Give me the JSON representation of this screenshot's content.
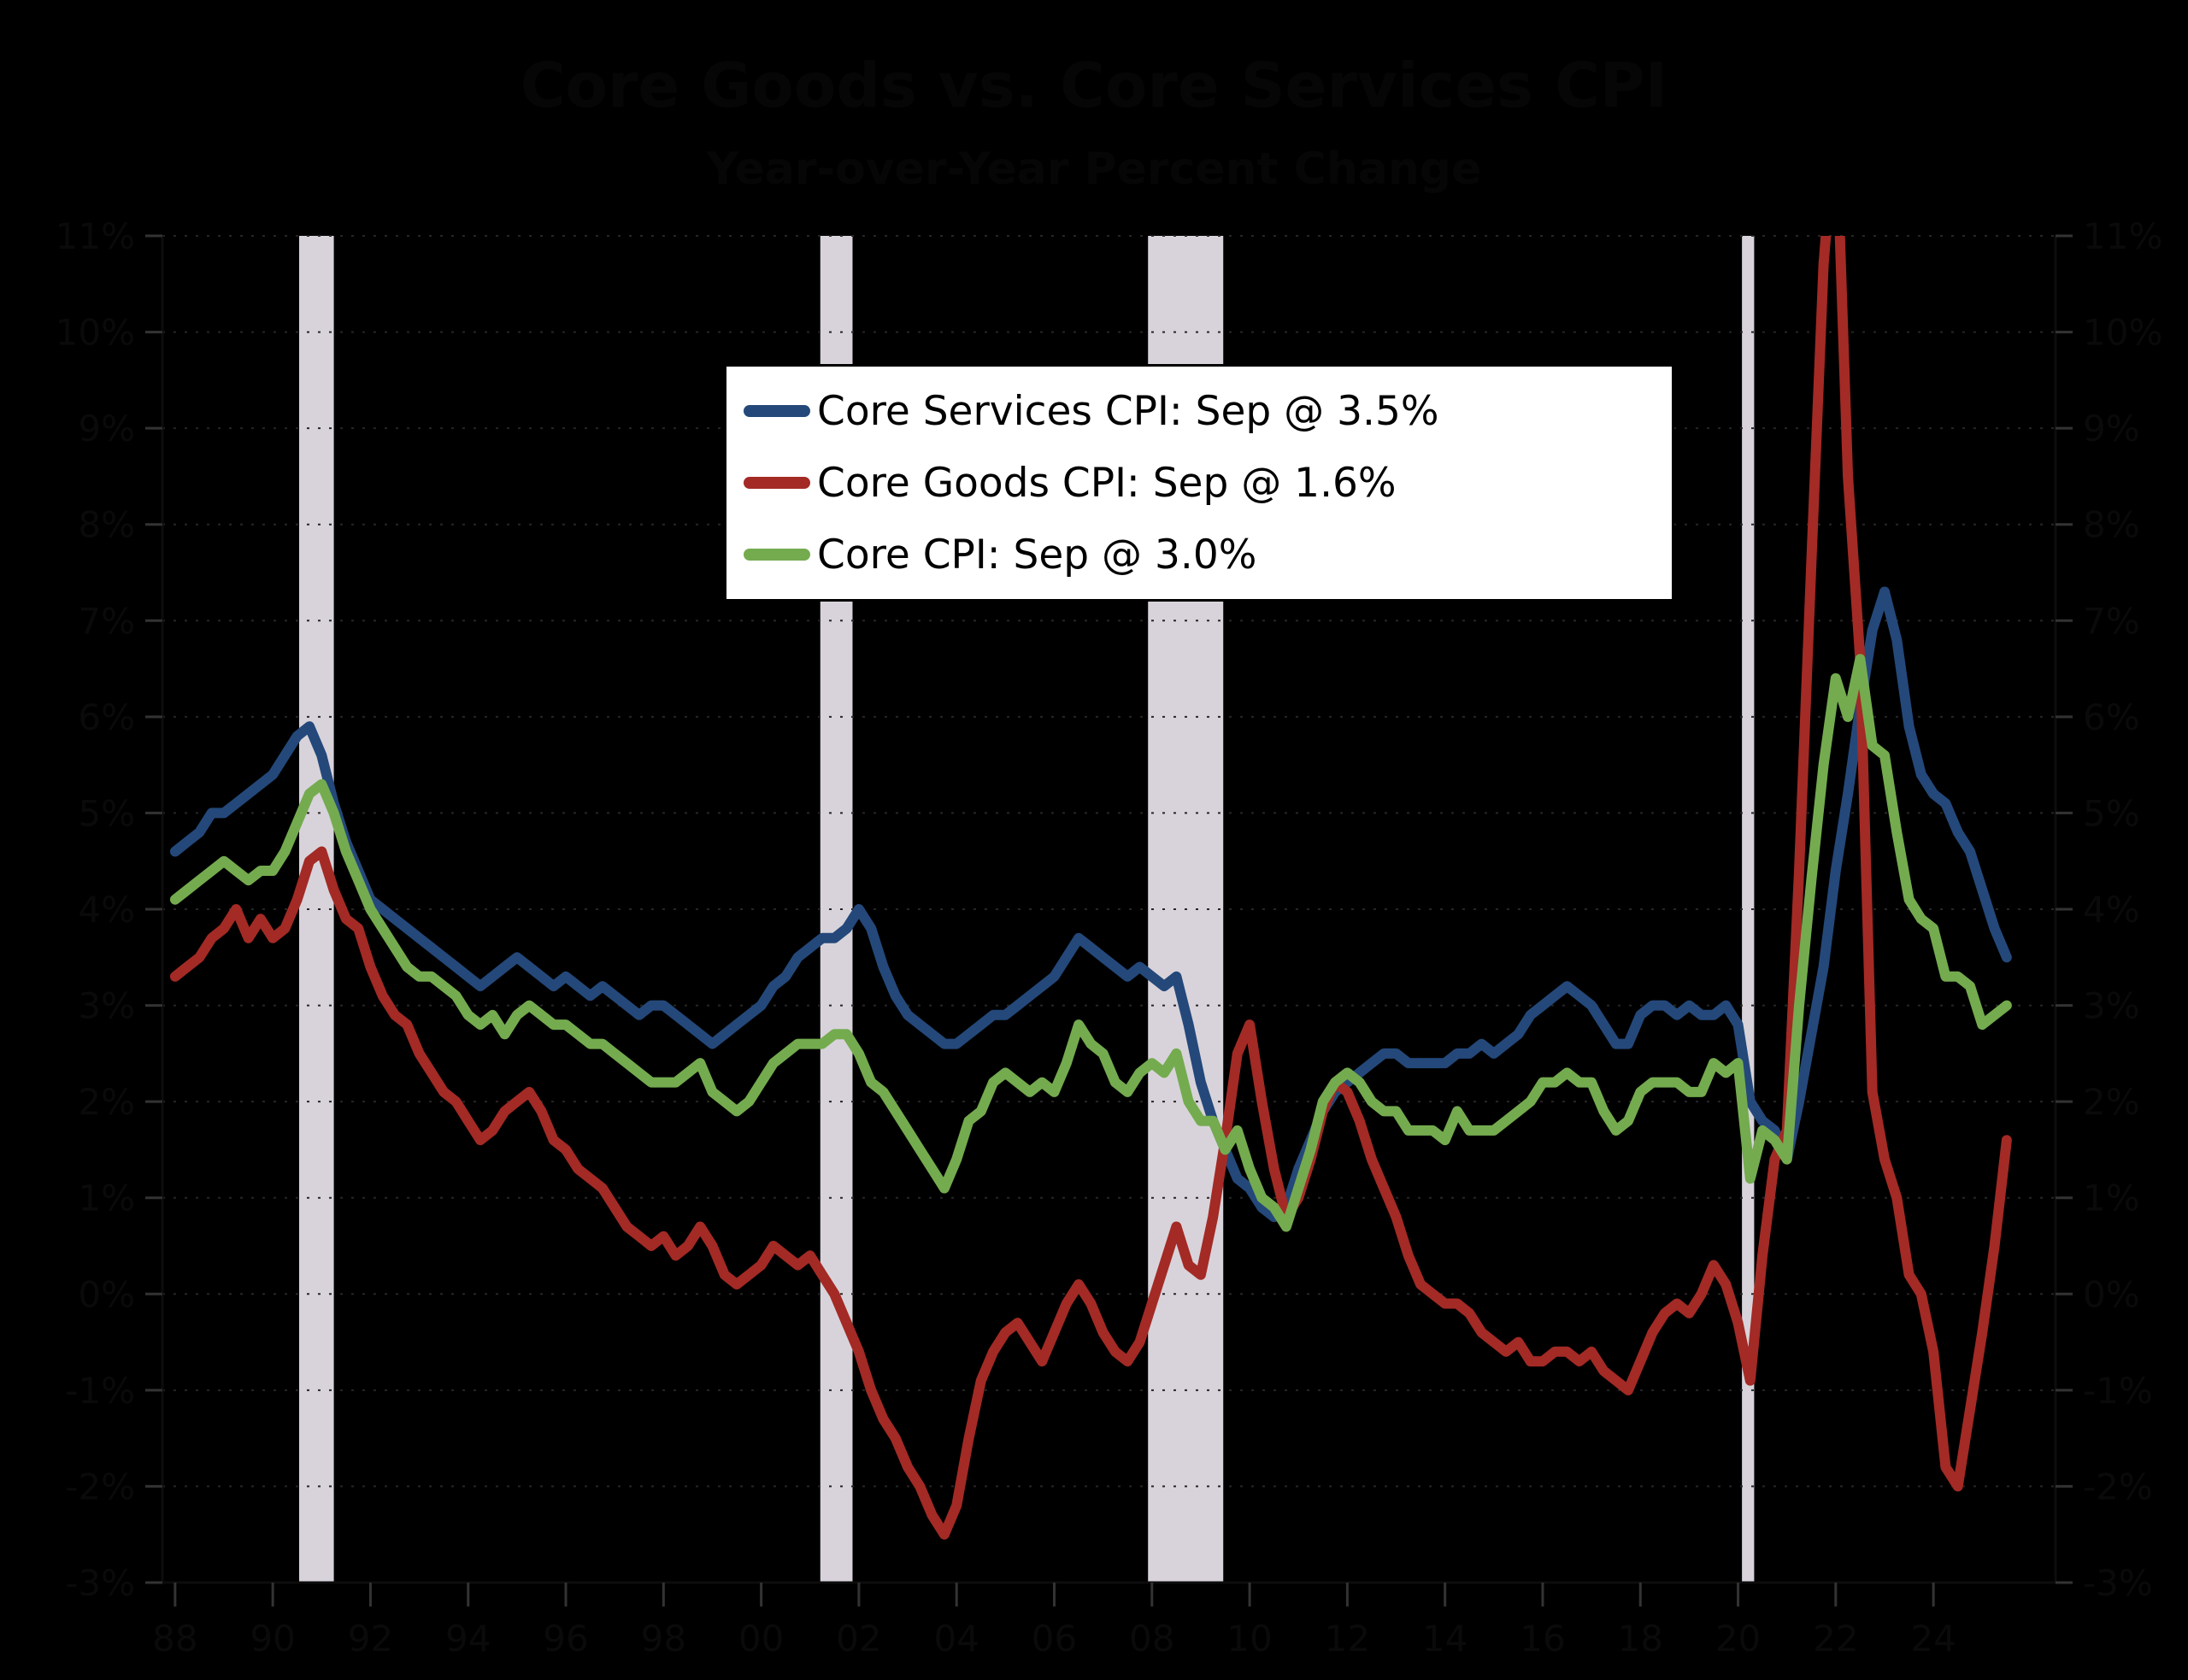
{
  "header": {
    "title": "Core Goods vs. Core Services CPI",
    "subtitle": "Year-over-Year Percent Change"
  },
  "legend": {
    "items": [
      {
        "label": "Core Services CPI: Sep @ 3.5%",
        "color": "#24487A"
      },
      {
        "label": "Core Goods CPI: Sep @ 1.6%",
        "color": "#A32A25"
      },
      {
        "label": "Core CPI: Sep @ 3.0%",
        "color": "#74AB4F"
      }
    ]
  },
  "chart_data": {
    "type": "line",
    "title": "Core Goods vs. Core Services CPI",
    "subtitle": "Year-over-Year Percent Change",
    "x_axis": {
      "min": 1987.74,
      "max": 2026.5,
      "tick_years": [
        1988,
        1990,
        1992,
        1994,
        1996,
        1998,
        2000,
        2002,
        2004,
        2006,
        2008,
        2010,
        2012,
        2014,
        2016,
        2018,
        2020,
        2022,
        2024
      ],
      "tick_labels": [
        "88",
        "90",
        "92",
        "94",
        "96",
        "98",
        "00",
        "02",
        "04",
        "06",
        "08",
        "10",
        "12",
        "14",
        "16",
        "18",
        "20",
        "22",
        "24"
      ]
    },
    "y_axis": {
      "min": -3,
      "max": 11,
      "tick_step": 1,
      "unit": "%",
      "tick_values": [
        11,
        10,
        9,
        8,
        7,
        6,
        5,
        4,
        3,
        2,
        1,
        0,
        -1,
        -2,
        -3
      ],
      "tick_labels": [
        "11%",
        "10%",
        "9%",
        "8%",
        "7%",
        "6%",
        "5%",
        "4%",
        "3%",
        "2%",
        "1%",
        "0%",
        "-1%",
        "-2%",
        "-3%"
      ],
      "dual_axis": true,
      "grid": "dotted"
    },
    "recession_bands": [
      {
        "from": 1990.54,
        "to": 1991.25
      },
      {
        "from": 2001.21,
        "to": 2001.87
      },
      {
        "from": 2007.92,
        "to": 2009.46
      },
      {
        "from": 2020.08,
        "to": 2020.33
      }
    ],
    "band_color": "#D8D3DA",
    "x_start": 1988.0,
    "x_step": 0.25,
    "series": [
      {
        "name": "Core Services CPI",
        "last_point": {
          "month": "Sep",
          "value": 3.5
        },
        "color": "#24487A",
        "values": [
          4.6,
          4.7,
          4.8,
          5.0,
          5.0,
          5.1,
          5.2,
          5.3,
          5.4,
          5.6,
          5.8,
          5.9,
          5.6,
          5.1,
          4.7,
          4.4,
          4.1,
          4.0,
          3.9,
          3.8,
          3.7,
          3.6,
          3.5,
          3.4,
          3.3,
          3.2,
          3.3,
          3.4,
          3.5,
          3.4,
          3.3,
          3.2,
          3.3,
          3.2,
          3.1,
          3.2,
          3.1,
          3.0,
          2.9,
          3.0,
          3.0,
          2.9,
          2.8,
          2.7,
          2.6,
          2.7,
          2.8,
          2.9,
          3.0,
          3.2,
          3.3,
          3.5,
          3.6,
          3.7,
          3.7,
          3.8,
          4.0,
          3.8,
          3.4,
          3.1,
          2.9,
          2.8,
          2.7,
          2.6,
          2.6,
          2.7,
          2.8,
          2.9,
          2.9,
          3.0,
          3.1,
          3.2,
          3.3,
          3.5,
          3.7,
          3.6,
          3.5,
          3.4,
          3.3,
          3.4,
          3.3,
          3.2,
          3.3,
          2.8,
          2.2,
          1.8,
          1.5,
          1.2,
          1.1,
          0.9,
          0.8,
          0.9,
          1.3,
          1.6,
          1.9,
          2.1,
          2.2,
          2.3,
          2.4,
          2.5,
          2.5,
          2.4,
          2.4,
          2.4,
          2.4,
          2.5,
          2.5,
          2.6,
          2.5,
          2.6,
          2.7,
          2.9,
          3.0,
          3.1,
          3.2,
          3.1,
          3.0,
          2.8,
          2.6,
          2.6,
          2.9,
          3.0,
          3.0,
          2.9,
          3.0,
          2.9,
          2.9,
          3.0,
          2.8,
          2.0,
          1.8,
          1.7,
          1.4,
          2.0,
          2.7,
          3.4,
          4.4,
          5.2,
          6.1,
          6.9,
          7.3,
          6.8,
          5.9,
          5.4,
          5.2,
          5.1,
          4.8,
          4.6,
          4.2,
          3.8,
          3.5
        ]
      },
      {
        "name": "Core Goods CPI",
        "last_point": {
          "month": "Sep",
          "value": 1.6
        },
        "color": "#A32A25",
        "values": [
          3.3,
          3.4,
          3.5,
          3.7,
          3.8,
          4.0,
          3.7,
          3.9,
          3.7,
          3.8,
          4.1,
          4.5,
          4.6,
          4.2,
          3.9,
          3.8,
          3.4,
          3.1,
          2.9,
          2.8,
          2.5,
          2.3,
          2.1,
          2.0,
          1.8,
          1.6,
          1.7,
          1.9,
          2.0,
          2.1,
          1.9,
          1.6,
          1.5,
          1.3,
          1.2,
          1.1,
          0.9,
          0.7,
          0.6,
          0.5,
          0.6,
          0.4,
          0.5,
          0.7,
          0.5,
          0.2,
          0.1,
          0.2,
          0.3,
          0.5,
          0.4,
          0.3,
          0.4,
          0.2,
          0.0,
          -0.3,
          -0.6,
          -1.0,
          -1.3,
          -1.5,
          -1.8,
          -2.0,
          -2.3,
          -2.5,
          -2.2,
          -1.5,
          -0.9,
          -0.6,
          -0.4,
          -0.3,
          -0.5,
          -0.7,
          -0.4,
          -0.1,
          0.1,
          -0.1,
          -0.4,
          -0.6,
          -0.7,
          -0.5,
          -0.1,
          0.3,
          0.7,
          0.3,
          0.2,
          0.8,
          1.6,
          2.5,
          2.8,
          2.0,
          1.3,
          0.8,
          1.0,
          1.4,
          1.9,
          2.2,
          2.1,
          1.8,
          1.4,
          1.1,
          0.8,
          0.4,
          0.1,
          0.0,
          -0.1,
          -0.1,
          -0.2,
          -0.4,
          -0.5,
          -0.6,
          -0.5,
          -0.7,
          -0.7,
          -0.6,
          -0.6,
          -0.7,
          -0.6,
          -0.8,
          -0.9,
          -1.0,
          -0.7,
          -0.4,
          -0.2,
          -0.1,
          -0.2,
          0.0,
          0.3,
          0.1,
          -0.3,
          -0.9,
          0.4,
          1.4,
          1.7,
          4.4,
          7.6,
          10.7,
          12.3,
          8.5,
          6.6,
          2.1,
          1.4,
          1.0,
          0.2,
          0.0,
          -0.6,
          -1.8,
          -2.0,
          -1.2,
          -0.4,
          0.5,
          1.6
        ]
      },
      {
        "name": "Core CPI",
        "last_point": {
          "month": "Sep",
          "value": 3.0
        },
        "color": "#74AB4F",
        "values": [
          4.1,
          4.2,
          4.3,
          4.4,
          4.5,
          4.4,
          4.3,
          4.4,
          4.4,
          4.6,
          4.9,
          5.2,
          5.3,
          5.0,
          4.6,
          4.3,
          4.0,
          3.8,
          3.6,
          3.4,
          3.3,
          3.3,
          3.2,
          3.1,
          2.9,
          2.8,
          2.9,
          2.7,
          2.9,
          3.0,
          2.9,
          2.8,
          2.8,
          2.7,
          2.6,
          2.6,
          2.5,
          2.4,
          2.3,
          2.2,
          2.2,
          2.2,
          2.3,
          2.4,
          2.1,
          2.0,
          1.9,
          2.0,
          2.2,
          2.4,
          2.5,
          2.6,
          2.6,
          2.6,
          2.7,
          2.7,
          2.5,
          2.2,
          2.1,
          1.9,
          1.7,
          1.5,
          1.3,
          1.1,
          1.4,
          1.8,
          1.9,
          2.2,
          2.3,
          2.2,
          2.1,
          2.2,
          2.1,
          2.4,
          2.8,
          2.6,
          2.5,
          2.2,
          2.1,
          2.3,
          2.4,
          2.3,
          2.5,
          2.0,
          1.8,
          1.8,
          1.5,
          1.7,
          1.3,
          1.0,
          0.9,
          0.7,
          1.1,
          1.5,
          2.0,
          2.2,
          2.3,
          2.2,
          2.0,
          1.9,
          1.9,
          1.7,
          1.7,
          1.7,
          1.6,
          1.9,
          1.7,
          1.7,
          1.7,
          1.8,
          1.9,
          2.0,
          2.2,
          2.2,
          2.3,
          2.2,
          2.2,
          1.9,
          1.7,
          1.8,
          2.1,
          2.2,
          2.2,
          2.2,
          2.1,
          2.1,
          2.4,
          2.3,
          2.4,
          1.2,
          1.7,
          1.6,
          1.4,
          3.0,
          4.3,
          5.5,
          6.4,
          6.0,
          6.6,
          5.7,
          5.6,
          4.8,
          4.1,
          3.9,
          3.8,
          3.3,
          3.3,
          3.2,
          2.8,
          2.9,
          3.0
        ]
      }
    ]
  }
}
